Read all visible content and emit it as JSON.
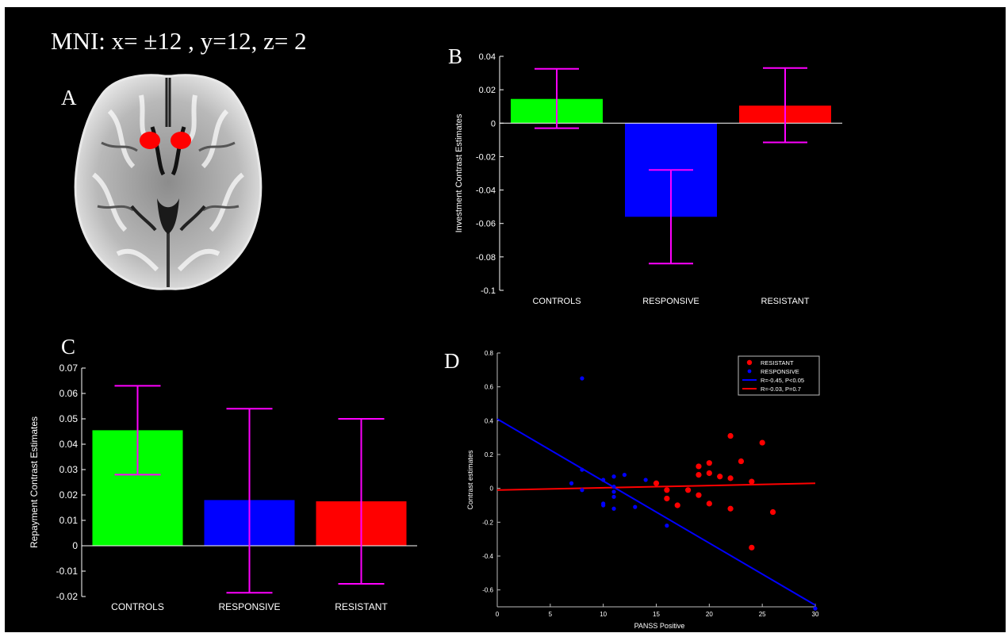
{
  "header": {
    "mni": "MNI: x= ±12 , y=12, z= 2"
  },
  "panels": {
    "a": "A",
    "b": "B",
    "c": "C",
    "d": "D"
  },
  "colors": {
    "controls": "#00ff00",
    "responsive": "#0000ff",
    "resistant": "#ff0000",
    "errorbar": "#ff00ff",
    "roi": "#ff0000"
  },
  "chart_data": [
    {
      "id": "B",
      "type": "bar",
      "ylabel": "Investment Contrast Estimates",
      "xlabel": "",
      "categories": [
        "CONTROLS",
        "RESPONSIVE",
        "RESISTANT"
      ],
      "values": [
        0.0145,
        -0.056,
        0.0105
      ],
      "errors": [
        [
          -0.003,
          0.0325
        ],
        [
          -0.084,
          -0.028
        ],
        [
          -0.0115,
          0.033
        ]
      ],
      "ylim": [
        -0.1,
        0.04
      ],
      "yticks": [
        "0.04",
        "0.02",
        "0",
        "-0.02",
        "-0.04",
        "-0.06",
        "-0.08",
        "-0.1"
      ]
    },
    {
      "id": "C",
      "type": "bar",
      "ylabel": "Repayment Contrast Estimates",
      "xlabel": "",
      "categories": [
        "CONTROLS",
        "RESPONSIVE",
        "RESISTANT"
      ],
      "values": [
        0.0455,
        0.018,
        0.0175
      ],
      "errors": [
        [
          0.028,
          0.063
        ],
        [
          -0.0185,
          0.054
        ],
        [
          -0.015,
          0.05
        ]
      ],
      "ylim": [
        -0.02,
        0.07
      ],
      "yticks": [
        "0.07",
        "0.06",
        "0.05",
        "0.04",
        "0.03",
        "0.02",
        "0.01",
        "0",
        "-0.01",
        "-0.02"
      ]
    },
    {
      "id": "D",
      "type": "scatter",
      "xlabel": "PANSS Positive",
      "ylabel": "Contrast estimates",
      "xlim": [
        0,
        30
      ],
      "ylim": [
        -0.7,
        0.8
      ],
      "xticks": [
        "0",
        "5",
        "10",
        "15",
        "20",
        "25",
        "30"
      ],
      "yticks": [
        "0.8",
        "0.6",
        "0.4",
        "0.2",
        "0",
        "-0.2",
        "-0.4",
        "-0.6"
      ],
      "legend_position": "top-right",
      "series": [
        {
          "name": "RESISTANT",
          "points": [
            [
              15,
              0.03
            ],
            [
              16,
              -0.01
            ],
            [
              16,
              -0.06
            ],
            [
              17,
              -0.1
            ],
            [
              18,
              -0.01
            ],
            [
              19,
              0.13
            ],
            [
              19,
              0.08
            ],
            [
              19,
              -0.04
            ],
            [
              20,
              0.15
            ],
            [
              20,
              0.09
            ],
            [
              20,
              -0.09
            ],
            [
              21,
              0.07
            ],
            [
              22,
              0.31
            ],
            [
              22,
              0.06
            ],
            [
              22,
              -0.12
            ],
            [
              23,
              0.16
            ],
            [
              24,
              0.04
            ],
            [
              24,
              -0.35
            ],
            [
              25,
              0.27
            ],
            [
              26,
              -0.14
            ]
          ]
        },
        {
          "name": "RESPONSIVE",
          "points": [
            [
              7,
              0.03
            ],
            [
              8,
              0.65
            ],
            [
              8,
              0.11
            ],
            [
              8,
              -0.01
            ],
            [
              10,
              0.05
            ],
            [
              10,
              -0.09
            ],
            [
              10,
              -0.1
            ],
            [
              11,
              0.07
            ],
            [
              11,
              0.01
            ],
            [
              11,
              -0.02
            ],
            [
              11,
              -0.05
            ],
            [
              11,
              -0.12
            ],
            [
              12,
              0.08
            ],
            [
              13,
              -0.11
            ],
            [
              14,
              0.05
            ],
            [
              16,
              -0.22
            ],
            [
              30,
              -0.71
            ]
          ]
        }
      ],
      "fit_lines": [
        {
          "name": "R=-0.45, P<0.05",
          "color": "#0000ff",
          "x": [
            0,
            30
          ],
          "y": [
            0.41,
            -0.69
          ]
        },
        {
          "name": "R=-0.03, P=0.7",
          "color": "#ff0000",
          "x": [
            0,
            30
          ],
          "y": [
            -0.01,
            0.03
          ]
        }
      ]
    }
  ]
}
